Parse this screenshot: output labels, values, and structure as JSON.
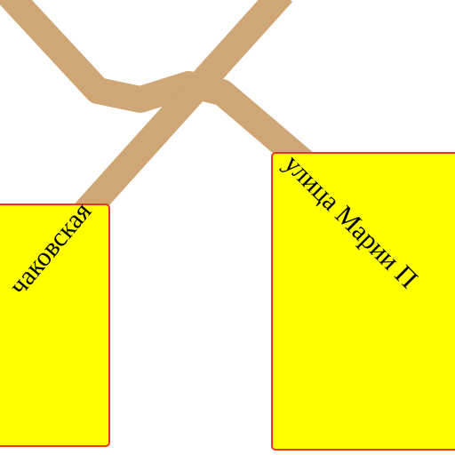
{
  "labels": [
    {
      "text": "чаковская"
    },
    {
      "text": "улица Марии П"
    }
  ]
}
